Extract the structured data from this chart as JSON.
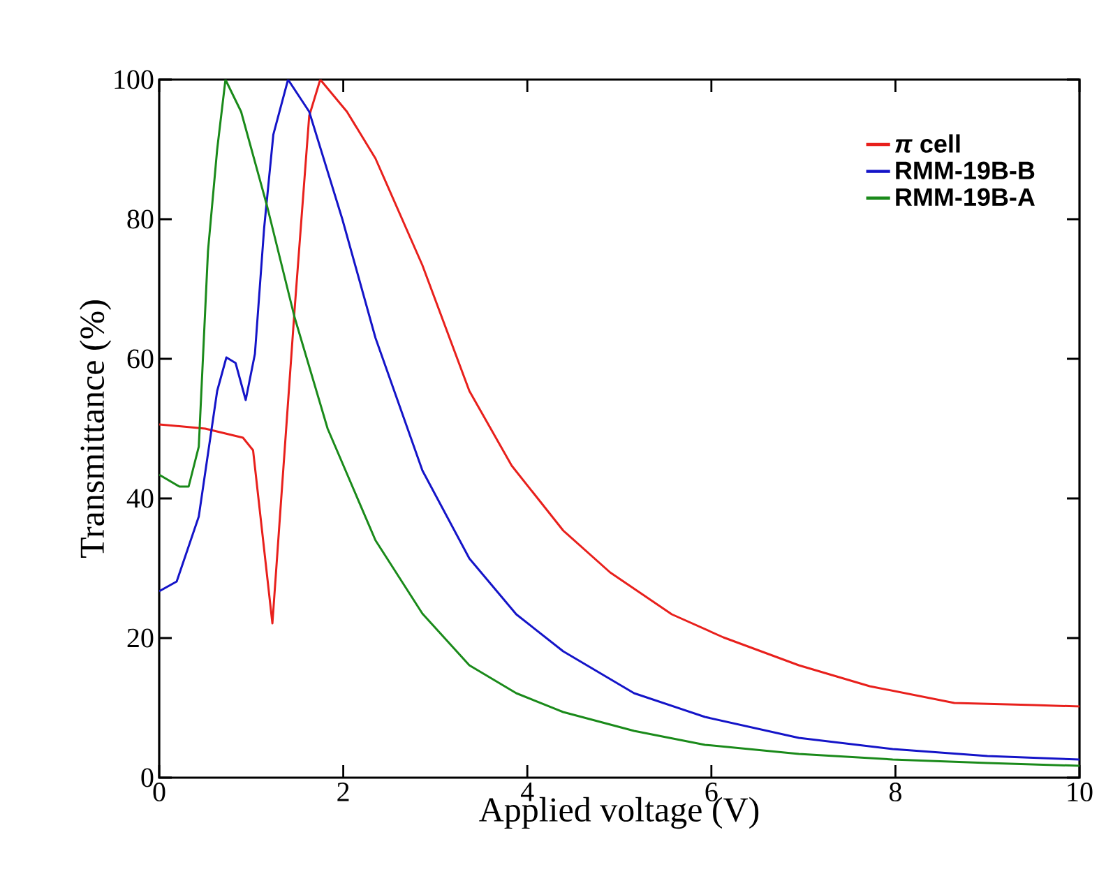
{
  "chart_data": {
    "type": "line",
    "xlabel": "Applied voltage (V)",
    "ylabel": "Transmittance (%)",
    "xlim": [
      0,
      10
    ],
    "ylim": [
      0,
      100
    ],
    "xticks": [
      0,
      2,
      4,
      6,
      8,
      10
    ],
    "yticks": [
      0,
      20,
      40,
      60,
      80,
      100
    ],
    "grid": false,
    "legend": "top right",
    "marker": "none",
    "line_style": "solid",
    "series": [
      {
        "name": "*π* cell",
        "color": "#e8201c",
        "x": [
          0,
          0.5,
          0.91,
          1.02,
          1.23,
          1.47,
          1.55,
          1.63,
          1.75,
          2.04,
          2.35,
          2.86,
          3.37,
          3.83,
          4.39,
          4.9,
          5.57,
          6.13,
          6.95,
          7.72,
          8.64,
          9.51,
          10
        ],
        "values": [
          50.6,
          50,
          48.7,
          46.9,
          22.1,
          66.8,
          80.8,
          94.8,
          100,
          95.4,
          88.7,
          73.4,
          55.4,
          44.7,
          35.4,
          29.4,
          23.4,
          20.1,
          16.1,
          13.1,
          10.7,
          10.4,
          10.2
        ]
      },
      {
        "name": "RMM-19B-B",
        "color": "#1414c8",
        "x": [
          0,
          0.19,
          0.43,
          0.63,
          0.73,
          0.83,
          0.94,
          1.04,
          1.14,
          1.24,
          1.4,
          1.63,
          1.99,
          2.35,
          2.86,
          3.37,
          3.88,
          4.39,
          5.16,
          5.93,
          6.95,
          7.97,
          9.0,
          10
        ],
        "values": [
          26.7,
          28.1,
          37.4,
          55.4,
          60.2,
          59.4,
          54.1,
          60.7,
          78.7,
          92.1,
          100,
          95.4,
          80,
          63,
          44,
          31.4,
          23.4,
          18.1,
          12.1,
          8.7,
          5.7,
          4.1,
          3.1,
          2.6
        ]
      },
      {
        "name": "RMM-19B-A",
        "color": "#1a8a1a",
        "x": [
          0,
          0.22,
          0.32,
          0.43,
          0.53,
          0.63,
          0.72,
          0.89,
          1.17,
          1.47,
          1.83,
          2.35,
          2.86,
          3.37,
          3.88,
          4.39,
          5.16,
          5.93,
          6.95,
          7.97,
          9.0,
          10
        ],
        "values": [
          43.4,
          41.7,
          41.7,
          47.4,
          75.4,
          90,
          100,
          95.4,
          82,
          66,
          50,
          34,
          23.5,
          16.1,
          12.1,
          9.4,
          6.7,
          4.7,
          3.4,
          2.6,
          2.1,
          1.7
        ]
      }
    ]
  }
}
